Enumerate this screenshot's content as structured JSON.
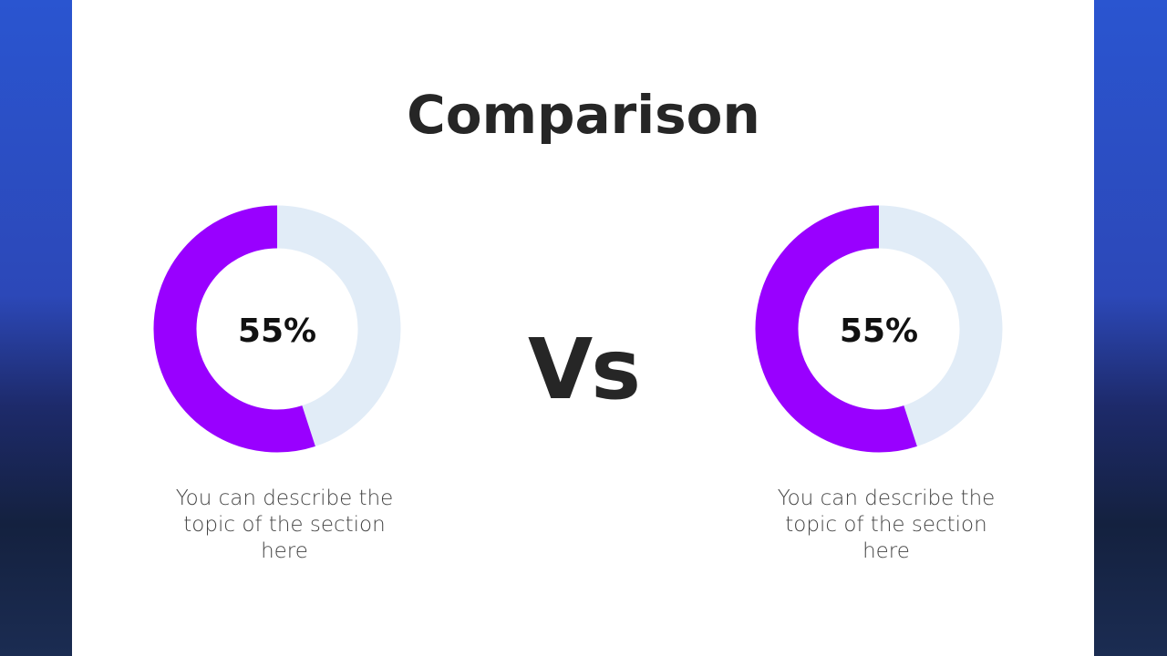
{
  "title": "Comparison",
  "separator": "Vs",
  "chart_data": [
    {
      "type": "donut",
      "values": [
        55
      ],
      "value_labels": [
        "55%"
      ],
      "color": "#9900ff",
      "track_color": "#e1ecf7",
      "description": "You can describe the topic of the section here"
    },
    {
      "type": "donut",
      "values": [
        55
      ],
      "value_labels": [
        "55%"
      ],
      "color": "#9900ff",
      "track_color": "#e1ecf7",
      "description": "You can describe the topic of the section here"
    }
  ]
}
